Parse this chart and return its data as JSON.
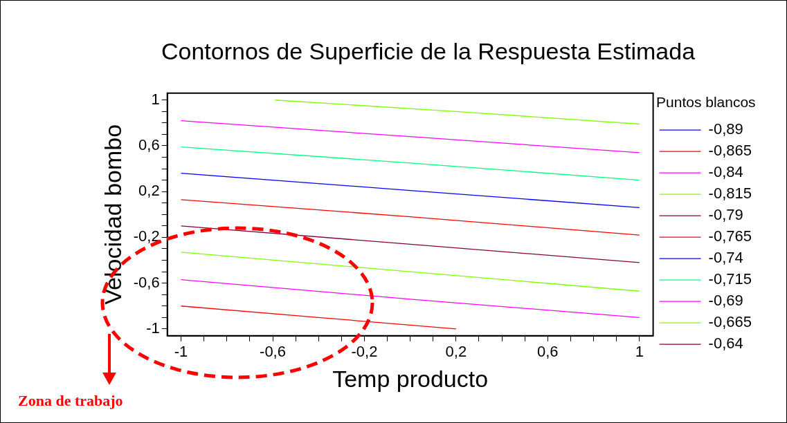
{
  "chart_data": {
    "type": "line",
    "title": "Contornos de Superficie de la Respuesta Estimada",
    "xlabel": "Temp producto",
    "ylabel": "Velocidad bombo",
    "legend_title": "Puntos blancos",
    "legend": "right",
    "grid": false,
    "marker": "none",
    "line_style": "solid",
    "xlim": [
      -1.06,
      1.06
    ],
    "ylim": [
      -1.06,
      1.06
    ],
    "xticks": [
      {
        "value": -1,
        "label": "-1"
      },
      {
        "value": -0.9,
        "label": null
      },
      {
        "value": -0.8,
        "label": null
      },
      {
        "value": -0.7,
        "label": null
      },
      {
        "value": -0.6,
        "label": "-0,6"
      },
      {
        "value": -0.5,
        "label": null
      },
      {
        "value": -0.4,
        "label": null
      },
      {
        "value": -0.3,
        "label": null
      },
      {
        "value": -0.2,
        "label": "-0,2"
      },
      {
        "value": -0.1,
        "label": null
      },
      {
        "value": 0,
        "label": null
      },
      {
        "value": 0.1,
        "label": null
      },
      {
        "value": 0.2,
        "label": "0,2"
      },
      {
        "value": 0.3,
        "label": null
      },
      {
        "value": 0.4,
        "label": null
      },
      {
        "value": 0.5,
        "label": null
      },
      {
        "value": 0.6,
        "label": "0,6"
      },
      {
        "value": 0.7,
        "label": null
      },
      {
        "value": 0.8,
        "label": null
      },
      {
        "value": 0.9,
        "label": null
      },
      {
        "value": 1,
        "label": "1"
      }
    ],
    "yticks": [
      {
        "value": -1,
        "label": "-1"
      },
      {
        "value": -0.9,
        "label": null
      },
      {
        "value": -0.8,
        "label": null
      },
      {
        "value": -0.7,
        "label": null
      },
      {
        "value": -0.6,
        "label": "-0,6"
      },
      {
        "value": -0.5,
        "label": null
      },
      {
        "value": -0.4,
        "label": null
      },
      {
        "value": -0.3,
        "label": null
      },
      {
        "value": -0.2,
        "label": "-0,2"
      },
      {
        "value": -0.1,
        "label": null
      },
      {
        "value": 0,
        "label": null
      },
      {
        "value": 0.1,
        "label": null
      },
      {
        "value": 0.2,
        "label": "0,2"
      },
      {
        "value": 0.3,
        "label": null
      },
      {
        "value": 0.4,
        "label": null
      },
      {
        "value": 0.5,
        "label": null
      },
      {
        "value": 0.6,
        "label": "0,6"
      },
      {
        "value": 0.7,
        "label": null
      },
      {
        "value": 0.8,
        "label": null
      },
      {
        "value": 0.9,
        "label": null
      },
      {
        "value": 1,
        "label": "1"
      }
    ],
    "series": [
      {
        "name": "-0,89",
        "color": "#0000ff"
      },
      {
        "name": "-0,865",
        "color": "#ff0000",
        "x": [
          -1,
          -0.4,
          0.2
        ],
        "values": [
          -0.8,
          -0.9,
          -1.0
        ]
      },
      {
        "name": "-0,84",
        "color": "#ff00ff",
        "x": [
          -1,
          0,
          1
        ],
        "values": [
          -0.57,
          -0.74,
          -0.9
        ]
      },
      {
        "name": "-0,815",
        "color": "#80ff00",
        "x": [
          -1,
          0,
          1
        ],
        "values": [
          -0.33,
          -0.5,
          -0.67
        ]
      },
      {
        "name": "-0,79",
        "color": "#800040",
        "x": [
          -1,
          0,
          1
        ],
        "values": [
          -0.1,
          -0.26,
          -0.42
        ]
      },
      {
        "name": "-0,765",
        "color": "#ff0000",
        "x": [
          -1,
          0,
          1
        ],
        "values": [
          0.13,
          -0.02,
          -0.18
        ]
      },
      {
        "name": "-0,74",
        "color": "#0000ff",
        "x": [
          -1,
          0,
          1
        ],
        "values": [
          0.36,
          0.21,
          0.06
        ]
      },
      {
        "name": "-0,715",
        "color": "#00ff80",
        "x": [
          -1,
          0,
          1
        ],
        "values": [
          0.59,
          0.45,
          0.3
        ]
      },
      {
        "name": "-0,69",
        "color": "#ff00ff",
        "x": [
          -1,
          0,
          1
        ],
        "values": [
          0.82,
          0.68,
          0.54
        ]
      },
      {
        "name": "-0,665",
        "color": "#80ff00",
        "x": [
          -0.59,
          0.2,
          1
        ],
        "values": [
          1.0,
          0.9,
          0.79
        ]
      },
      {
        "name": "-0,64",
        "color": "#800040"
      }
    ],
    "annotations": [
      "Zona de trabajo"
    ]
  }
}
